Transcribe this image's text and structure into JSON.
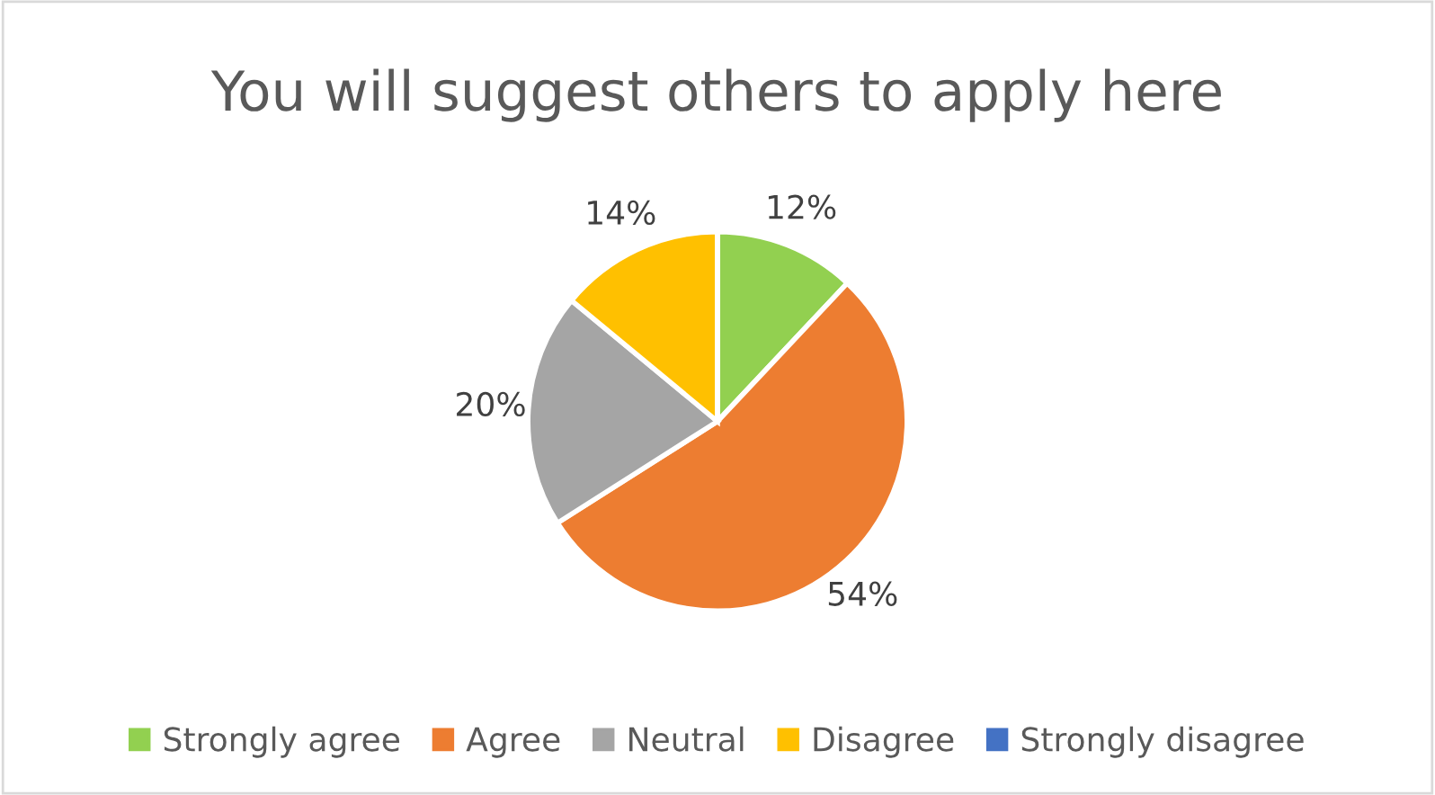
{
  "chart_data": {
    "type": "pie",
    "title": "You will suggest others to apply here",
    "categories": [
      "Strongly agree",
      "Agree",
      "Neutral",
      "Disagree",
      "Strongly disagree"
    ],
    "values": [
      12,
      54,
      20,
      14,
      0
    ],
    "colors": [
      "#92d050",
      "#ed7d31",
      "#a5a5a5",
      "#ffc000",
      "#4472c4"
    ],
    "value_labels": [
      "12%",
      "54%",
      "20%",
      "14%",
      null
    ],
    "legend": "bottom"
  }
}
